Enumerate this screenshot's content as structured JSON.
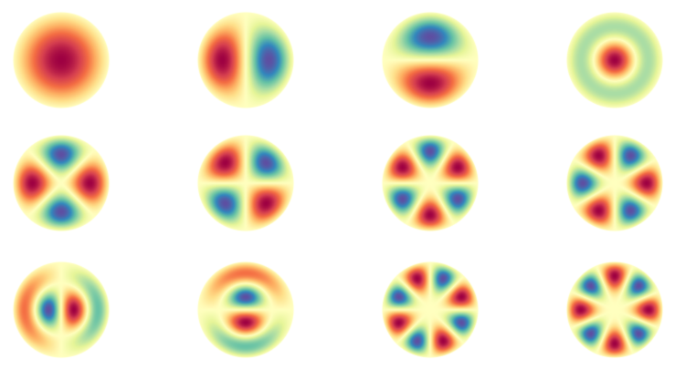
{
  "colormap": "Spectral",
  "colors": {
    "background": "#ffffff",
    "stops": [
      "#9e0142",
      "#d53e4f",
      "#f46d43",
      "#fdae61",
      "#fee08b",
      "#ffffbf",
      "#e6f598",
      "#abdda4",
      "#66c2a5",
      "#3288bd",
      "#5e4fa2"
    ]
  },
  "grid": {
    "rows": 3,
    "columns": 4
  },
  "modes": [
    {
      "n": 0,
      "k": 1,
      "basis": "cos",
      "invert": false
    },
    {
      "n": 1,
      "k": 1,
      "basis": "cos",
      "invert": true
    },
    {
      "n": 1,
      "k": 1,
      "basis": "sin",
      "invert": true
    },
    {
      "n": 0,
      "k": 2,
      "basis": "cos",
      "invert": false
    },
    {
      "n": 2,
      "k": 1,
      "basis": "cos",
      "invert": false
    },
    {
      "n": 2,
      "k": 1,
      "basis": "sin",
      "invert": true
    },
    {
      "n": 3,
      "k": 1,
      "basis": "sin",
      "invert": false
    },
    {
      "n": 3,
      "k": 1,
      "basis": "cos",
      "invert": false
    },
    {
      "n": 1,
      "k": 2,
      "basis": "cos",
      "invert": false
    },
    {
      "n": 1,
      "k": 2,
      "basis": "sin",
      "invert": true
    },
    {
      "n": 4,
      "k": 1,
      "basis": "sin",
      "invert": false
    },
    {
      "n": 4,
      "k": 1,
      "basis": "cos",
      "invert": false
    }
  ]
}
